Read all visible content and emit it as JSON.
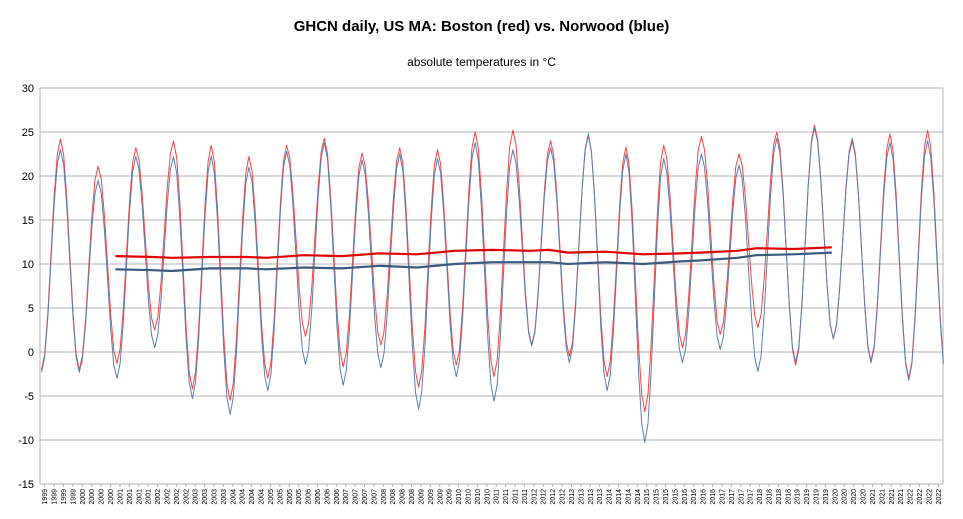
{
  "chart_data": {
    "type": "line",
    "title": "GHCN daily, US MA: Boston (red) vs. Norwood (blue)",
    "subtitle": "absolute temperatures in °C",
    "xlabel": "",
    "ylabel": "",
    "ylim": [
      -15,
      30
    ],
    "yticks": [
      -15,
      -10,
      -5,
      0,
      5,
      10,
      15,
      20,
      25,
      30
    ],
    "grid": true,
    "legend": "none",
    "x_start_year": 1999,
    "x_end_year": 2022,
    "x_tick_labels": [
      "1999",
      "1999",
      "1999",
      "1999",
      "2000",
      "2000",
      "2000",
      "2000",
      "2001",
      "2001",
      "2001",
      "2001",
      "2002",
      "2002",
      "2002",
      "2002",
      "2003",
      "2003",
      "2003",
      "2003",
      "2004",
      "2004",
      "2004",
      "2004",
      "2005",
      "2005",
      "2005",
      "2005",
      "2006",
      "2006",
      "2006",
      "2006",
      "2007",
      "2007",
      "2007",
      "2007",
      "2008",
      "2008",
      "2008",
      "2008",
      "2009",
      "2009",
      "2009",
      "2009",
      "2010",
      "2010",
      "2010",
      "2010",
      "2011",
      "2011",
      "2011",
      "2011",
      "2012",
      "2012",
      "2012",
      "2012",
      "2013",
      "2013",
      "2013",
      "2013",
      "2014",
      "2014",
      "2014",
      "2014",
      "2015",
      "2015",
      "2015",
      "2015",
      "2016",
      "2016",
      "2016",
      "2016",
      "2017",
      "2017",
      "2017",
      "2017",
      "2018",
      "2018",
      "2018",
      "2018",
      "2019",
      "2019",
      "2019",
      "2019",
      "2020",
      "2020",
      "2020",
      "2020",
      "2021",
      "2021",
      "2021",
      "2021",
      "2022",
      "2022",
      "2022",
      "2022"
    ],
    "series": [
      {
        "name": "Boston (red)",
        "color": "#ff4040",
        "kind": "monthly",
        "summer": [
          24.2,
          21.1,
          23.2,
          24.0,
          23.5,
          22.2,
          23.5,
          24.3,
          22.6,
          23.2,
          23.0,
          25.0,
          25.2,
          24.0,
          24.6,
          23.3,
          23.5,
          24.5,
          22.5,
          25.0,
          25.8,
          24.0,
          24.8,
          25.2
        ],
        "winter": [
          -2.0,
          -1.3,
          2.5,
          -4.2,
          -5.5,
          -3.0,
          1.8,
          -1.7,
          0.8,
          -4.0,
          -1.5,
          -2.8,
          0.8,
          -0.5,
          -2.8,
          -6.8,
          0.5,
          2.0,
          2.8,
          -1.5,
          1.5,
          -1.0,
          -3.0
        ]
      },
      {
        "name": "Norwood (blue)",
        "color": "#5a7fb0",
        "kind": "monthly",
        "summer": [
          23.0,
          19.5,
          22.2,
          22.2,
          22.3,
          21.0,
          22.8,
          23.8,
          21.8,
          22.5,
          22.0,
          23.8,
          23.0,
          23.2,
          24.8,
          22.5,
          22.0,
          22.5,
          21.2,
          24.3,
          25.5,
          24.3,
          23.8,
          24.0
        ],
        "winter": [
          -2.3,
          -3.0,
          0.5,
          -5.3,
          -7.1,
          -4.4,
          -1.4,
          -3.8,
          -1.8,
          -6.5,
          -2.8,
          -5.6,
          0.7,
          -1.2,
          -4.4,
          -10.3,
          -1.2,
          0.3,
          -2.2,
          -1.2,
          1.5,
          -1.2,
          -3.2
        ]
      },
      {
        "name": "Boston running mean",
        "color": "#e00000",
        "kind": "smooth",
        "x": [
          2001.0,
          2002.0,
          2002.5,
          2003.5,
          2004.5,
          2005.0,
          2006.0,
          2007.0,
          2008.0,
          2009.0,
          2010.0,
          2011.0,
          2012.0,
          2012.5,
          2013.0,
          2014.0,
          2015.0,
          2016.0,
          2016.5,
          2017.5,
          2018.0,
          2019.0,
          2020.0
        ],
        "y": [
          10.9,
          10.8,
          10.7,
          10.8,
          10.8,
          10.7,
          11.0,
          10.9,
          11.2,
          11.1,
          11.5,
          11.6,
          11.5,
          11.6,
          11.3,
          11.4,
          11.1,
          11.2,
          11.3,
          11.5,
          11.8,
          11.7,
          11.9
        ]
      },
      {
        "name": "Norwood running mean",
        "color": "#3a5a80",
        "kind": "smooth",
        "x": [
          2001.0,
          2002.0,
          2002.5,
          2003.5,
          2004.5,
          2005.0,
          2006.0,
          2007.0,
          2008.0,
          2009.0,
          2010.0,
          2011.0,
          2012.0,
          2012.5,
          2013.0,
          2014.0,
          2015.0,
          2016.0,
          2016.5,
          2017.5,
          2018.0,
          2019.0,
          2020.0
        ],
        "y": [
          9.4,
          9.3,
          9.2,
          9.5,
          9.5,
          9.4,
          9.6,
          9.5,
          9.8,
          9.6,
          10.0,
          10.2,
          10.2,
          10.2,
          10.0,
          10.2,
          10.0,
          10.3,
          10.4,
          10.7,
          11.0,
          11.1,
          11.3
        ]
      }
    ]
  }
}
